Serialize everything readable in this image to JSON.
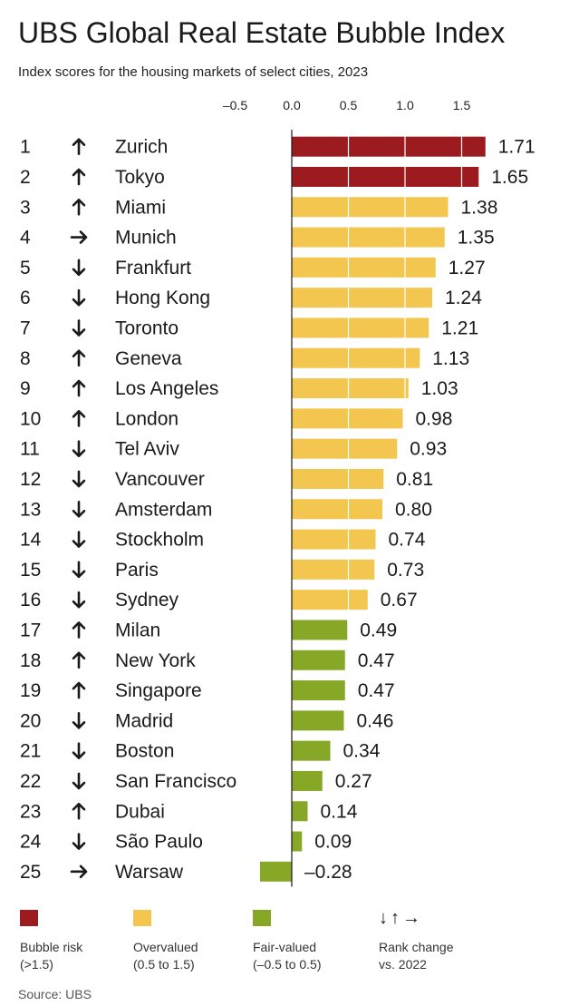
{
  "title": "UBS Global Real Estate Bubble Index",
  "subtitle": "Index scores for the housing markets of select cities, 2023",
  "source": "Source: UBS",
  "colors": {
    "bubble": "#9b1b1e",
    "over": "#f2c64f",
    "fair": "#86a826"
  },
  "legend": {
    "bubble": {
      "label": "Bubble risk",
      "range": "(>1.5)"
    },
    "over": {
      "label": "Overvalued",
      "range": "(0.5 to 1.5)"
    },
    "fair": {
      "label": "Fair-valued",
      "range": "(–0.5 to 0.5)"
    },
    "rank": {
      "label": "Rank change",
      "range": "vs. 2022",
      "icons": "↓↑→"
    }
  },
  "chart_data": {
    "type": "bar",
    "orientation": "horizontal",
    "xlim": [
      -0.5,
      1.75
    ],
    "x_ticks": [
      -0.5,
      0,
      0.5,
      1.0,
      1.5
    ],
    "x_tick_labels": [
      "–0.5",
      "0.0",
      "0.5",
      "1.0",
      "1.5"
    ],
    "gridlines": [
      0.5,
      1.0,
      1.5
    ],
    "rows": [
      {
        "rank": "1",
        "change": "up",
        "city": "Zurich",
        "value": 1.71,
        "label": "1.71",
        "cat": "bubble"
      },
      {
        "rank": "2",
        "change": "up",
        "city": "Tokyo",
        "value": 1.65,
        "label": "1.65",
        "cat": "bubble"
      },
      {
        "rank": "3",
        "change": "up",
        "city": "Miami",
        "value": 1.38,
        "label": "1.38",
        "cat": "over"
      },
      {
        "rank": "4",
        "change": "right",
        "city": "Munich",
        "value": 1.35,
        "label": "1.35",
        "cat": "over"
      },
      {
        "rank": "5",
        "change": "down",
        "city": "Frankfurt",
        "value": 1.27,
        "label": "1.27",
        "cat": "over"
      },
      {
        "rank": "6",
        "change": "down",
        "city": "Hong Kong",
        "value": 1.24,
        "label": "1.24",
        "cat": "over"
      },
      {
        "rank": "7",
        "change": "down",
        "city": "Toronto",
        "value": 1.21,
        "label": "1.21",
        "cat": "over"
      },
      {
        "rank": "8",
        "change": "up",
        "city": "Geneva",
        "value": 1.13,
        "label": "1.13",
        "cat": "over"
      },
      {
        "rank": "9",
        "change": "up",
        "city": "Los Angeles",
        "value": 1.03,
        "label": "1.03",
        "cat": "over"
      },
      {
        "rank": "10",
        "change": "up",
        "city": "London",
        "value": 0.98,
        "label": "0.98",
        "cat": "over"
      },
      {
        "rank": "11",
        "change": "down",
        "city": "Tel Aviv",
        "value": 0.93,
        "label": "0.93",
        "cat": "over"
      },
      {
        "rank": "12",
        "change": "down",
        "city": "Vancouver",
        "value": 0.81,
        "label": "0.81",
        "cat": "over"
      },
      {
        "rank": "13",
        "change": "down",
        "city": "Amsterdam",
        "value": 0.8,
        "label": "0.80",
        "cat": "over"
      },
      {
        "rank": "14",
        "change": "down",
        "city": "Stockholm",
        "value": 0.74,
        "label": "0.74",
        "cat": "over"
      },
      {
        "rank": "15",
        "change": "down",
        "city": "Paris",
        "value": 0.73,
        "label": "0.73",
        "cat": "over"
      },
      {
        "rank": "16",
        "change": "down",
        "city": "Sydney",
        "value": 0.67,
        "label": "0.67",
        "cat": "over"
      },
      {
        "rank": "17",
        "change": "up",
        "city": "Milan",
        "value": 0.49,
        "label": "0.49",
        "cat": "fair"
      },
      {
        "rank": "18",
        "change": "up",
        "city": "New York",
        "value": 0.47,
        "label": "0.47",
        "cat": "fair"
      },
      {
        "rank": "19",
        "change": "up",
        "city": "Singapore",
        "value": 0.47,
        "label": "0.47",
        "cat": "fair"
      },
      {
        "rank": "20",
        "change": "down",
        "city": "Madrid",
        "value": 0.46,
        "label": "0.46",
        "cat": "fair"
      },
      {
        "rank": "21",
        "change": "down",
        "city": "Boston",
        "value": 0.34,
        "label": "0.34",
        "cat": "fair"
      },
      {
        "rank": "22",
        "change": "down",
        "city": "San Francisco",
        "value": 0.27,
        "label": "0.27",
        "cat": "fair"
      },
      {
        "rank": "23",
        "change": "up",
        "city": "Dubai",
        "value": 0.14,
        "label": "0.14",
        "cat": "fair"
      },
      {
        "rank": "24",
        "change": "down",
        "city": "São Paulo",
        "value": 0.09,
        "label": "0.09",
        "cat": "fair"
      },
      {
        "rank": "25",
        "change": "right",
        "city": "Warsaw",
        "value": -0.28,
        "label": "–0.28",
        "cat": "fair"
      }
    ]
  }
}
